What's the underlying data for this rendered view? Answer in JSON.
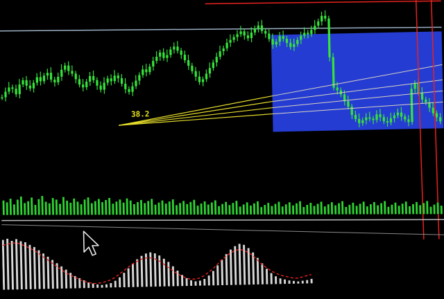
{
  "colors": {
    "background": "#000000",
    "candle": "#35e33a",
    "volume": "#2fd432",
    "fib": "#e6dd2a",
    "fib_fan": "#d9d4c0",
    "selection": "#2a44f0",
    "red_line": "#e8221e",
    "level_line": "#9bb0c4",
    "oscillator": "#d8d8d8",
    "oscillator_signal": "#e8221e"
  },
  "cursor": {
    "icon": "arrow-cursor-icon"
  },
  "chart_data": [
    {
      "type": "candlestick",
      "title": "",
      "xlabel": "",
      "ylabel": "",
      "grid": false,
      "ylim": [
        0,
        100
      ],
      "close": [
        38,
        42,
        45,
        44,
        40,
        47,
        50,
        46,
        44,
        48,
        52,
        49,
        53,
        55,
        50,
        48,
        52,
        57,
        60,
        56,
        54,
        50,
        46,
        44,
        48,
        52,
        49,
        45,
        42,
        47,
        50,
        48,
        52,
        50,
        46,
        42,
        40,
        44,
        48,
        52,
        56,
        54,
        58,
        62,
        65,
        68,
        64,
        66,
        70,
        72,
        69,
        66,
        62,
        58,
        54,
        50,
        46,
        48,
        52,
        56,
        60,
        64,
        68,
        70,
        74,
        76,
        78,
        80,
        82,
        79,
        77,
        81,
        84,
        86,
        82,
        80,
        76,
        72,
        74,
        78,
        76,
        73,
        70,
        72,
        75,
        78,
        80,
        79,
        82,
        85,
        88,
        92,
        90,
        62,
        40,
        38,
        35,
        30,
        26,
        20,
        17,
        14,
        16,
        18,
        17,
        16,
        20,
        18,
        15,
        14,
        17,
        19,
        21,
        18,
        16,
        14,
        38,
        42,
        35,
        30,
        28,
        24,
        20,
        17,
        14
      ],
      "annotation_text": "38.2"
    },
    {
      "type": "bar",
      "title": "",
      "ylim": [
        0,
        100
      ],
      "values": [
        55,
        48,
        62,
        40,
        58,
        70,
        45,
        52,
        66,
        38,
        60,
        72,
        50,
        44,
        64,
        58,
        42,
        68,
        54,
        46,
        62,
        50,
        40,
        58,
        66,
        44,
        52,
        60,
        48,
        56,
        64,
        42,
        50,
        58,
        46,
        62,
        54,
        40,
        48,
        56,
        44,
        52,
        60,
        38,
        46,
        54,
        42,
        50,
        58,
        36,
        44,
        52,
        40,
        48,
        56,
        34,
        42,
        50,
        38,
        46,
        54,
        32,
        40,
        48,
        36,
        44,
        52,
        30,
        38,
        46,
        34,
        42,
        50,
        28,
        36,
        44,
        32,
        40,
        48,
        30,
        38,
        46,
        34,
        42,
        50,
        28,
        36,
        44,
        32,
        40,
        48,
        30,
        38,
        46,
        34,
        42,
        50,
        28,
        36,
        44,
        32,
        40,
        48,
        30,
        38,
        46,
        34,
        42,
        50,
        28,
        36,
        44,
        32,
        40,
        48,
        30,
        38,
        46,
        34,
        42,
        50,
        28,
        36,
        44,
        32
      ]
    },
    {
      "type": "area",
      "title": "",
      "ylim": [
        0,
        100
      ],
      "values": [
        90,
        92,
        88,
        91,
        87,
        85,
        80,
        76,
        70,
        64,
        58,
        52,
        46,
        40,
        34,
        28,
        22,
        18,
        14,
        10,
        8,
        6,
        5,
        6,
        8,
        12,
        18,
        26,
        34,
        42,
        50,
        56,
        60,
        62,
        60,
        56,
        50,
        44,
        36,
        28,
        20,
        14,
        10,
        8,
        9,
        12,
        18,
        26,
        36,
        46,
        56,
        64,
        70,
        74,
        72,
        66,
        58,
        48,
        38,
        28,
        20,
        14,
        10,
        8,
        6,
        5,
        4,
        5,
        6,
        8
      ],
      "signal": [
        80,
        82,
        84,
        84,
        82,
        78,
        74,
        70,
        64,
        58,
        52,
        46,
        40,
        34,
        28,
        24,
        20,
        16,
        12,
        10,
        8,
        8,
        9,
        11,
        14,
        18,
        24,
        30,
        36,
        42,
        46,
        50,
        52,
        52,
        50,
        46,
        40,
        34,
        28,
        22,
        18,
        14,
        12,
        12,
        14,
        18,
        24,
        30,
        38,
        46,
        52,
        58,
        62,
        64,
        62,
        58,
        52,
        44,
        36,
        30,
        24,
        20,
        16,
        14,
        12,
        10,
        10,
        12,
        14,
        16
      ]
    }
  ]
}
